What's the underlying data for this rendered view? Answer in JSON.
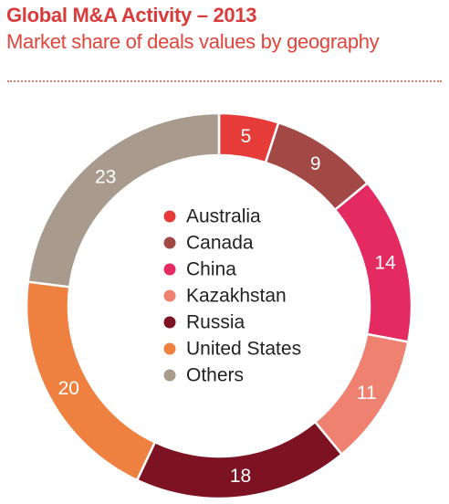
{
  "title": "Global M&A Activity – 2013",
  "subtitle": "Market share of deals values by geography",
  "chart_data": {
    "type": "pie",
    "donut": true,
    "categories": [
      "Australia",
      "Canada",
      "China",
      "Kazakhstan",
      "Russia",
      "United States",
      "Others"
    ],
    "values": [
      5,
      9,
      14,
      11,
      18,
      20,
      23
    ],
    "colors": [
      "#e53c39",
      "#a24845",
      "#e32a61",
      "#ef8170",
      "#7c1222",
      "#ef8140",
      "#a89a8d"
    ],
    "legend_position": "center"
  }
}
